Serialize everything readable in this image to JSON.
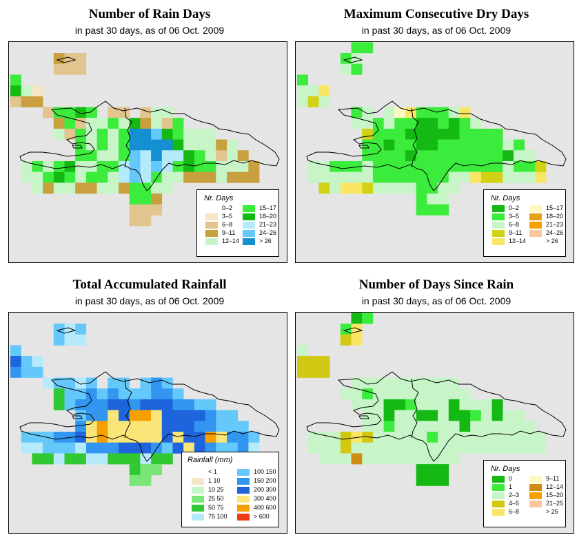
{
  "panels": [
    {
      "title": "Number of Rain Days",
      "subtitle": "in past 30 days, as of  06 Oct. 2009",
      "legend": {
        "title": "Nr. Days",
        "items": [
          {
            "label": "0–2",
            "color": "#ffffff"
          },
          {
            "label": "3–5",
            "color": "#f5e6c8"
          },
          {
            "label": "6–8",
            "color": "#e2c48e"
          },
          {
            "label": "9–11",
            "color": "#c8a040"
          },
          {
            "label": "12–14",
            "color": "#c8f5c8"
          },
          {
            "label": "15–17",
            "color": "#3cec3c"
          },
          {
            "label": "18–20",
            "color": "#14b914"
          },
          {
            "label": "21–23",
            "color": "#b4eafa"
          },
          {
            "label": "24–26",
            "color": "#64c8fa"
          },
          {
            "label": "> 26",
            "color": "#1490d2"
          }
        ]
      }
    },
    {
      "title": "Maximum Consecutive Dry Days",
      "subtitle": "in past 30 days, as of  06 Oct. 2009",
      "legend": {
        "title": "Nr. Days",
        "items": [
          {
            "label": "0–2",
            "color": "#14b914"
          },
          {
            "label": "3–5",
            "color": "#3cec3c"
          },
          {
            "label": "6–8",
            "color": "#c8f5c8"
          },
          {
            "label": "9–11",
            "color": "#d2d214"
          },
          {
            "label": "12–14",
            "color": "#fae664"
          },
          {
            "label": "15–17",
            "color": "#fff8c0"
          },
          {
            "label": "18–20",
            "color": "#e6a014"
          },
          {
            "label": "21–23",
            "color": "#f5a000"
          },
          {
            "label": "24–26",
            "color": "#fac8a0"
          },
          {
            "label": "> 26",
            "color": "#ffffff"
          }
        ]
      }
    },
    {
      "title": "Total Accumulated Rainfall",
      "subtitle": "in past 30 days, as of  06 Oct. 2009",
      "legend": {
        "title": "Rainfall (mm)",
        "items": [
          {
            "label": "< 1",
            "color": "#ffffff"
          },
          {
            "label": "1    10",
            "color": "#f5e6c8"
          },
          {
            "label": "10    25",
            "color": "#c8f5c8"
          },
          {
            "label": "25    50",
            "color": "#78e678"
          },
          {
            "label": "50    75",
            "color": "#32c832"
          },
          {
            "label": "75  100",
            "color": "#b4eafa"
          },
          {
            "label": "100  150",
            "color": "#64c8fa"
          },
          {
            "label": "150  200",
            "color": "#3296f0"
          },
          {
            "label": "200  300",
            "color": "#1e64dc"
          },
          {
            "label": "300  400",
            "color": "#fae678"
          },
          {
            "label": "400  600",
            "color": "#f5a000"
          },
          {
            "label": "> 600",
            "color": "#f03c14"
          }
        ]
      }
    },
    {
      "title": "Number of Days Since Rain",
      "subtitle": "in past 30 days, as of  06 Oct. 2009",
      "legend": {
        "title": "Nr. Days",
        "items": [
          {
            "label": "0",
            "color": "#14b914"
          },
          {
            "label": "1",
            "color": "#3cec3c"
          },
          {
            "label": "2–3",
            "color": "#c8f5c8"
          },
          {
            "label": "4–5",
            "color": "#d2c814"
          },
          {
            "label": "6–8",
            "color": "#fae664"
          },
          {
            "label": "9–11",
            "color": "#fff8c0"
          },
          {
            "label": "12–14",
            "color": "#d28c14"
          },
          {
            "label": "15–20",
            "color": "#f5a000"
          },
          {
            "label": "21–25",
            "color": "#fac8a0"
          },
          {
            "label": "> 25",
            "color": "#ffffff"
          }
        ]
      }
    }
  ]
}
